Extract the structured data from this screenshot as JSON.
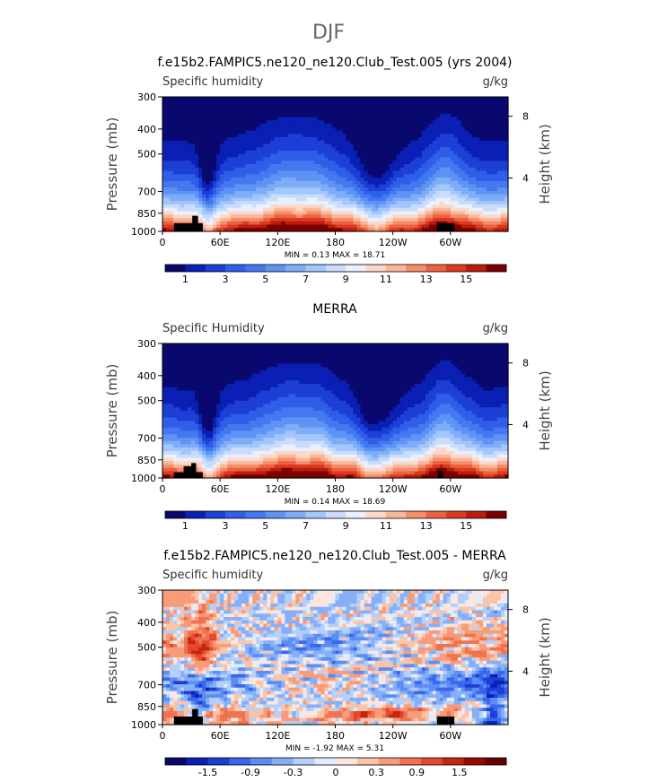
{
  "figure": {
    "title": "DJF"
  },
  "chart_data": [
    {
      "type": "heatmap",
      "title": "f.e15b2.FAMPIC5.ne120_ne120.Club_Test.005 (yrs 2004)",
      "left_label": "Specific humidity",
      "right_label": "g/kg",
      "ylabel": "Pressure (mb)",
      "y2label": "Height (km)",
      "x_ticks": [
        "0",
        "60E",
        "120E",
        "180",
        "120W",
        "60W"
      ],
      "y_ticks": [
        "300",
        "400",
        "500",
        "700",
        "850",
        "1000"
      ],
      "y2_ticks": [
        "8",
        "4"
      ],
      "min_text": "MIN =   0.13   MAX =   18.71",
      "colorbar_labels": [
        "1",
        "3",
        "5",
        "7",
        "9",
        "11",
        "13",
        "15"
      ],
      "levels": [
        1,
        2,
        3,
        4,
        5,
        6,
        7,
        8,
        9,
        10,
        11,
        12,
        13,
        14,
        15,
        16
      ],
      "min": 0.13,
      "max": 18.71
    },
    {
      "type": "heatmap",
      "title": "MERRA",
      "left_label": "Specific Humidity",
      "right_label": "g/kg",
      "ylabel": "Pressure (mb)",
      "y2label": "Height (km)",
      "x_ticks": [
        "0",
        "60E",
        "120E",
        "180",
        "120W",
        "60W"
      ],
      "y_ticks": [
        "300",
        "400",
        "500",
        "700",
        "850",
        "1000"
      ],
      "y2_ticks": [
        "8",
        "4"
      ],
      "min_text": "MIN =   0.14   MAX =   18.69",
      "colorbar_labels": [
        "1",
        "3",
        "5",
        "7",
        "9",
        "11",
        "13",
        "15"
      ],
      "levels": [
        1,
        2,
        3,
        4,
        5,
        6,
        7,
        8,
        9,
        10,
        11,
        12,
        13,
        14,
        15,
        16
      ],
      "min": 0.14,
      "max": 18.69
    },
    {
      "type": "heatmap",
      "title": "f.e15b2.FAMPIC5.ne120_ne120.Club_Test.005 - MERRA",
      "left_label": "Specific humidity",
      "right_label": "g/kg",
      "ylabel": "Pressure (mb)",
      "y2label": "Height (km)",
      "x_ticks": [
        "0",
        "60E",
        "120E",
        "180",
        "120W",
        "60W"
      ],
      "y_ticks": [
        "300",
        "400",
        "500",
        "700",
        "850",
        "1000"
      ],
      "y2_ticks": [
        "8",
        "4"
      ],
      "min_text": "MIN =  -1.92   MAX =    5.31",
      "colorbar_labels": [
        "-1.5",
        "-0.9",
        "-0.3",
        "0",
        "0.3",
        "0.9",
        "1.5"
      ],
      "levels": [
        -1.8,
        -1.5,
        -1.2,
        -0.9,
        -0.6,
        -0.3,
        -0.1,
        0,
        0.1,
        0.3,
        0.6,
        0.9,
        1.2,
        1.5,
        1.8
      ],
      "min": -1.92,
      "max": 5.31
    }
  ],
  "colors": {
    "abs_palette": [
      "#08086e",
      "#0a1fb4",
      "#1c3fd6",
      "#2f5ee8",
      "#4478f0",
      "#5e93f5",
      "#7eadf8",
      "#a3c6fb",
      "#c9dcfc",
      "#ebf0fd",
      "#fbd9c8",
      "#f9b69a",
      "#f48d6a",
      "#ec6241",
      "#dc3a1f",
      "#bb1c0d",
      "#7a0000"
    ],
    "diff_palette": [
      "#08086e",
      "#0a1fb4",
      "#1c3fd6",
      "#3a66ec",
      "#5b8df3",
      "#85aff8",
      "#b5cffb",
      "#e2ecfd",
      "#fde6dc",
      "#fbc3a8",
      "#f89b79",
      "#f07250",
      "#e3492a",
      "#c42612",
      "#9a0b02",
      "#6a0000"
    ],
    "terrain": "#000000"
  }
}
